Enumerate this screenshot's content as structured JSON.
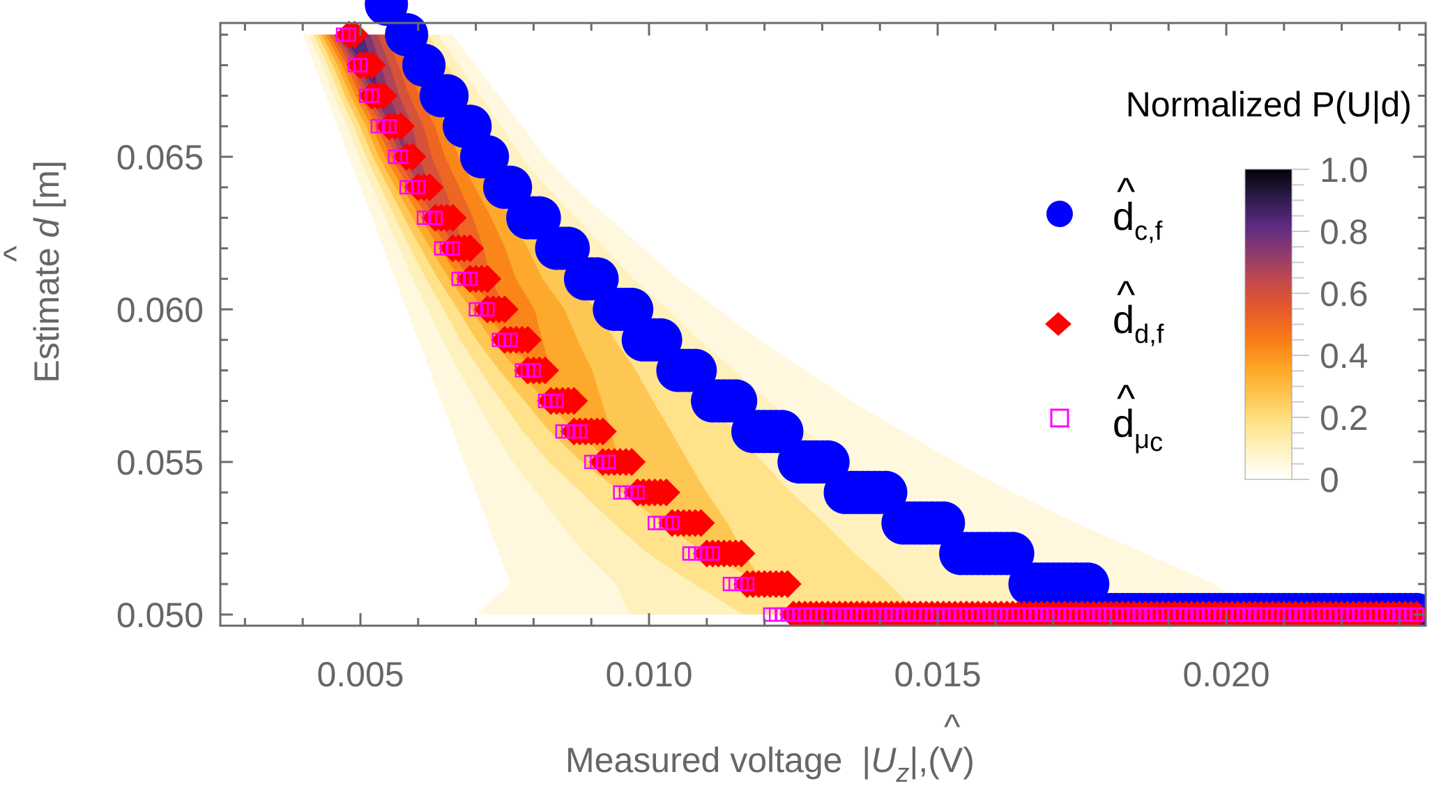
{
  "chart_data": {
    "type": "heatmap",
    "title": "",
    "xlabel": "Measured voltage |Û_z|,(V)",
    "xlabel_parts": {
      "prefix": "Measured voltage  |",
      "symbol": "U",
      "hat": "^",
      "subscript": "z",
      "suffix": "|,(V)"
    },
    "ylabel": "Estimate d̂ [m]",
    "ylabel_parts": {
      "prefix": "Estimate ",
      "symbol": "d",
      "hat": "^",
      "suffix": " [m]"
    },
    "xlim": [
      0.0025,
      0.0233
    ],
    "ylim": [
      0.0496,
      0.0694
    ],
    "x_ticks": [
      0.005,
      0.01,
      0.015,
      0.02
    ],
    "x_tick_labels": [
      "0.005",
      "0.010",
      "0.015",
      "0.020"
    ],
    "x_minor_step": 0.001,
    "y_ticks": [
      0.05,
      0.055,
      0.06,
      0.065
    ],
    "y_tick_labels": [
      "0.050",
      "0.055",
      "0.060",
      "0.065"
    ],
    "y_minor_step": 0.001,
    "grid": false,
    "colorbar": {
      "title": "Normalized P(U|d)",
      "range": [
        0,
        1
      ],
      "ticks": [
        0,
        0.2,
        0.4,
        0.6,
        0.8,
        1.0
      ],
      "tick_labels": [
        "0",
        "0.2",
        "0.4",
        "0.6",
        "0.8",
        "1.0"
      ],
      "colormap": [
        "#ffffff",
        "#fff3c4",
        "#ffe38a",
        "#fec44f",
        "#fda424",
        "#f97a16",
        "#e65a2b",
        "#c44a4a",
        "#8f3c6e",
        "#5c2a83",
        "#2d1a4a",
        "#050308"
      ],
      "placement": "right"
    },
    "heatmap_description": {
      "d_rows": [
        0.069,
        0.068,
        0.067,
        0.066,
        0.065,
        0.064,
        0.063,
        0.062,
        0.061,
        0.06,
        0.059,
        0.058,
        0.057,
        0.056,
        0.055,
        0.054,
        0.053,
        0.052,
        0.051,
        0.05
      ],
      "support_left_U": [
        0.004,
        0.0042,
        0.0044,
        0.0046,
        0.0048,
        0.005,
        0.0052,
        0.0054,
        0.0056,
        0.0058,
        0.006,
        0.0062,
        0.0064,
        0.0066,
        0.0068,
        0.007,
        0.0072,
        0.0074,
        0.0076,
        0.007
      ],
      "peak_U": [
        0.0048,
        0.0051,
        0.0053,
        0.0056,
        0.0058,
        0.0061,
        0.0064,
        0.0067,
        0.007,
        0.0074,
        0.0077,
        0.0081,
        0.0085,
        0.0089,
        0.0094,
        0.01,
        0.0106,
        0.0112,
        0.012,
        0.013
      ],
      "support_right_U": [
        0.0066,
        0.007,
        0.0074,
        0.0078,
        0.0082,
        0.0087,
        0.0093,
        0.0099,
        0.0105,
        0.0112,
        0.0119,
        0.0127,
        0.0135,
        0.0144,
        0.0153,
        0.0163,
        0.0174,
        0.0186,
        0.0198,
        0.0205
      ],
      "peak_value": [
        1.0,
        0.9,
        0.85,
        0.8,
        0.75,
        0.7,
        0.65,
        0.6,
        0.55,
        0.52,
        0.48,
        0.44,
        0.4,
        0.37,
        0.34,
        0.31,
        0.29,
        0.27,
        0.25,
        0.23
      ]
    },
    "series": [
      {
        "name": "d̂_c,f",
        "label_main": "d",
        "label_sub": "c,f",
        "marker": "circle",
        "color": "#0000ff",
        "runs": [
          {
            "d": 0.07,
            "U_from": 0.00545,
            "U_to": 0.00545
          },
          {
            "d": 0.069,
            "U_from": 0.0058,
            "U_to": 0.0058
          },
          {
            "d": 0.068,
            "U_from": 0.0061,
            "U_to": 0.0061
          },
          {
            "d": 0.067,
            "U_from": 0.0064,
            "U_to": 0.0065
          },
          {
            "d": 0.066,
            "U_from": 0.0068,
            "U_to": 0.0069
          },
          {
            "d": 0.065,
            "U_from": 0.0071,
            "U_to": 0.0072
          },
          {
            "d": 0.064,
            "U_from": 0.0075,
            "U_to": 0.0076
          },
          {
            "d": 0.063,
            "U_from": 0.0079,
            "U_to": 0.0081
          },
          {
            "d": 0.062,
            "U_from": 0.0084,
            "U_to": 0.0086
          },
          {
            "d": 0.061,
            "U_from": 0.0089,
            "U_to": 0.0091
          },
          {
            "d": 0.06,
            "U_from": 0.0094,
            "U_to": 0.0097
          },
          {
            "d": 0.059,
            "U_from": 0.0099,
            "U_to": 0.0102
          },
          {
            "d": 0.058,
            "U_from": 0.0105,
            "U_to": 0.0108
          },
          {
            "d": 0.057,
            "U_from": 0.0111,
            "U_to": 0.0115
          },
          {
            "d": 0.056,
            "U_from": 0.0118,
            "U_to": 0.0123
          },
          {
            "d": 0.055,
            "U_from": 0.0126,
            "U_to": 0.0131
          },
          {
            "d": 0.054,
            "U_from": 0.0134,
            "U_to": 0.0141
          },
          {
            "d": 0.053,
            "U_from": 0.0144,
            "U_to": 0.0151
          },
          {
            "d": 0.052,
            "U_from": 0.0154,
            "U_to": 0.0163
          },
          {
            "d": 0.051,
            "U_from": 0.0166,
            "U_to": 0.0176
          },
          {
            "d": 0.05,
            "U_from": 0.018,
            "U_to": 0.0233
          }
        ]
      },
      {
        "name": "d̂_d,f",
        "label_main": "d",
        "label_sub": "d,f",
        "marker": "diamond",
        "color": "#ff0000",
        "runs": [
          {
            "d": 0.069,
            "U_from": 0.0048,
            "U_to": 0.0049
          },
          {
            "d": 0.068,
            "U_from": 0.005,
            "U_to": 0.0052
          },
          {
            "d": 0.067,
            "U_from": 0.0052,
            "U_to": 0.0054
          },
          {
            "d": 0.066,
            "U_from": 0.0055,
            "U_to": 0.0057
          },
          {
            "d": 0.065,
            "U_from": 0.0058,
            "U_to": 0.0059
          },
          {
            "d": 0.064,
            "U_from": 0.006,
            "U_to": 0.0062
          },
          {
            "d": 0.063,
            "U_from": 0.0063,
            "U_to": 0.0066
          },
          {
            "d": 0.062,
            "U_from": 0.0066,
            "U_to": 0.0069
          },
          {
            "d": 0.061,
            "U_from": 0.0069,
            "U_to": 0.0072
          },
          {
            "d": 0.06,
            "U_from": 0.0072,
            "U_to": 0.0075
          },
          {
            "d": 0.059,
            "U_from": 0.0075,
            "U_to": 0.0079
          },
          {
            "d": 0.058,
            "U_from": 0.0079,
            "U_to": 0.0082
          },
          {
            "d": 0.057,
            "U_from": 0.0083,
            "U_to": 0.0087
          },
          {
            "d": 0.056,
            "U_from": 0.0087,
            "U_to": 0.0092
          },
          {
            "d": 0.055,
            "U_from": 0.0092,
            "U_to": 0.0097
          },
          {
            "d": 0.054,
            "U_from": 0.0098,
            "U_to": 0.0103
          },
          {
            "d": 0.053,
            "U_from": 0.0104,
            "U_to": 0.0109
          },
          {
            "d": 0.052,
            "U_from": 0.011,
            "U_to": 0.0116
          },
          {
            "d": 0.051,
            "U_from": 0.0117,
            "U_to": 0.0124
          },
          {
            "d": 0.05,
            "U_from": 0.0125,
            "U_to": 0.0233
          }
        ]
      },
      {
        "name": "d̂_μc",
        "label_main": "d",
        "label_sub": "μ",
        "label_subsub": "c",
        "marker": "open-square",
        "color": "#ff00ff",
        "runs": [
          {
            "d": 0.069,
            "U_from": 0.0047,
            "U_to": 0.0048
          },
          {
            "d": 0.068,
            "U_from": 0.0049,
            "U_to": 0.005
          },
          {
            "d": 0.067,
            "U_from": 0.0051,
            "U_to": 0.0052
          },
          {
            "d": 0.066,
            "U_from": 0.0053,
            "U_to": 0.0055
          },
          {
            "d": 0.065,
            "U_from": 0.0056,
            "U_to": 0.0057
          },
          {
            "d": 0.064,
            "U_from": 0.0058,
            "U_to": 0.006
          },
          {
            "d": 0.063,
            "U_from": 0.0061,
            "U_to": 0.0063
          },
          {
            "d": 0.062,
            "U_from": 0.0064,
            "U_to": 0.0066
          },
          {
            "d": 0.061,
            "U_from": 0.0067,
            "U_to": 0.0069
          },
          {
            "d": 0.06,
            "U_from": 0.007,
            "U_to": 0.0072
          },
          {
            "d": 0.059,
            "U_from": 0.0074,
            "U_to": 0.0076
          },
          {
            "d": 0.058,
            "U_from": 0.0078,
            "U_to": 0.008
          },
          {
            "d": 0.057,
            "U_from": 0.0082,
            "U_to": 0.0084
          },
          {
            "d": 0.056,
            "U_from": 0.0085,
            "U_to": 0.0088
          },
          {
            "d": 0.055,
            "U_from": 0.009,
            "U_to": 0.0093
          },
          {
            "d": 0.054,
            "U_from": 0.0095,
            "U_to": 0.0098
          },
          {
            "d": 0.053,
            "U_from": 0.0101,
            "U_to": 0.0104
          },
          {
            "d": 0.052,
            "U_from": 0.0107,
            "U_to": 0.0111
          },
          {
            "d": 0.051,
            "U_from": 0.0114,
            "U_to": 0.0117
          },
          {
            "d": 0.05,
            "U_from": 0.0121,
            "U_to": 0.0233
          }
        ]
      }
    ],
    "legend": {
      "placement": "right",
      "entries": [
        "d̂_c,f",
        "d̂_d,f",
        "d̂_μc"
      ]
    }
  }
}
